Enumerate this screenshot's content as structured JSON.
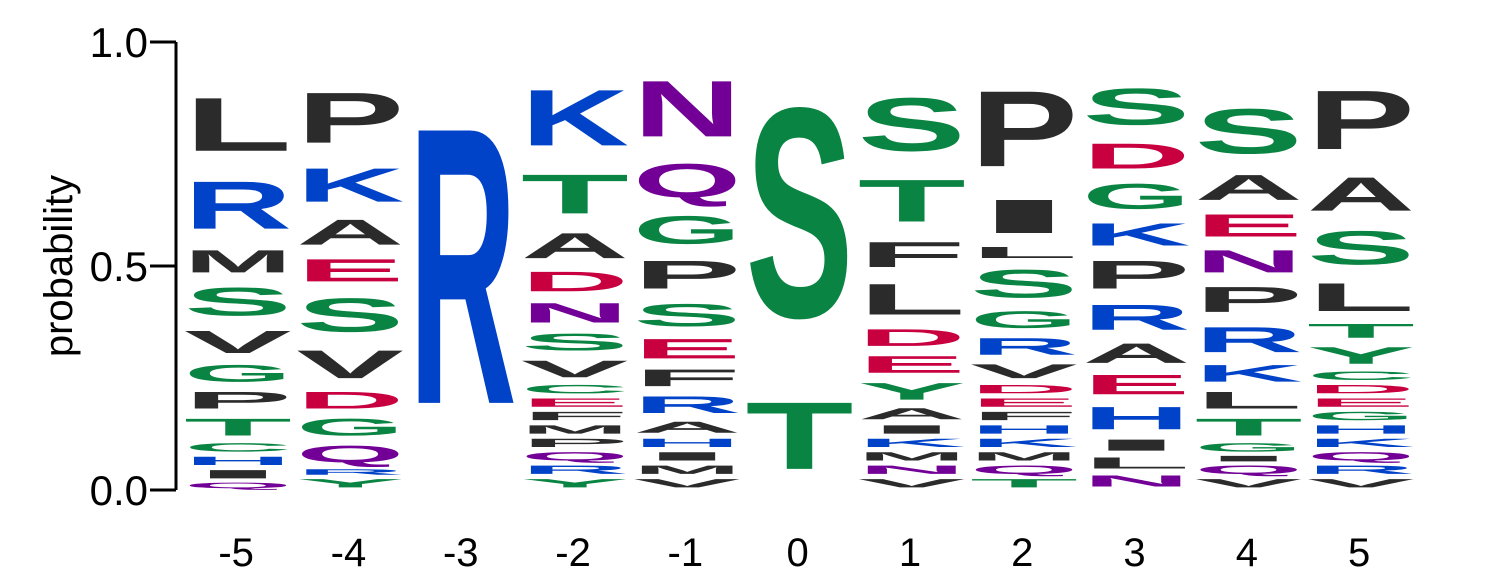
{
  "chart_data": {
    "type": "sequence-logo",
    "ylabel": "probability",
    "ylim": [
      0,
      1
    ],
    "yticks": [
      "0.0",
      "0.5",
      "1.0"
    ],
    "colors": {
      "hydrophobic": "#2b2b2b",
      "polar": "#0a8442",
      "basic": "#0042c8",
      "acidic": "#c80040",
      "amide": "#720096"
    },
    "residue_class": {
      "A": "hydrophobic",
      "V": "hydrophobic",
      "L": "hydrophobic",
      "I": "hydrophobic",
      "P": "hydrophobic",
      "F": "hydrophobic",
      "W": "hydrophobic",
      "M": "hydrophobic",
      "S": "polar",
      "T": "polar",
      "G": "polar",
      "C": "polar",
      "Y": "polar",
      "K": "basic",
      "R": "basic",
      "H": "basic",
      "D": "acidic",
      "E": "acidic",
      "N": "amide",
      "Q": "amide"
    },
    "positions": [
      {
        "label": "-5",
        "stack": [
          [
            "Q",
            0.02
          ],
          [
            "I",
            0.03
          ],
          [
            "H",
            0.03
          ],
          [
            "C",
            0.03
          ],
          [
            "T",
            0.06
          ],
          [
            "P",
            0.06
          ],
          [
            "G",
            0.06
          ],
          [
            "V",
            0.08
          ],
          [
            "S",
            0.1
          ],
          [
            "M",
            0.08
          ],
          [
            "R",
            0.17
          ],
          [
            "L",
            0.19
          ]
        ]
      },
      {
        "label": "-4",
        "stack": [
          [
            "Y",
            0.03
          ],
          [
            "R",
            0.02
          ],
          [
            "Q",
            0.06
          ],
          [
            "G",
            0.06
          ],
          [
            "D",
            0.06
          ],
          [
            "V",
            0.1
          ],
          [
            "S",
            0.12
          ],
          [
            "E",
            0.08
          ],
          [
            "A",
            0.09
          ],
          [
            "K",
            0.12
          ],
          [
            "P",
            0.18
          ]
        ]
      },
      {
        "label": "-3",
        "stack": [
          [
            "R",
            0.99
          ]
        ]
      },
      {
        "label": "-2",
        "stack": [
          [
            "Y",
            0.03
          ],
          [
            "R",
            0.03
          ],
          [
            "Q",
            0.03
          ],
          [
            "P",
            0.03
          ],
          [
            "M",
            0.03
          ],
          [
            "F",
            0.03
          ],
          [
            "E",
            0.03
          ],
          [
            "C",
            0.03
          ],
          [
            "V",
            0.06
          ],
          [
            "S",
            0.06
          ],
          [
            "N",
            0.07
          ],
          [
            "D",
            0.07
          ],
          [
            "A",
            0.09
          ],
          [
            "T",
            0.14
          ],
          [
            "K",
            0.2
          ]
        ]
      },
      {
        "label": "-1",
        "stack": [
          [
            "V",
            0.03
          ],
          [
            "M",
            0.03
          ],
          [
            "I",
            0.03
          ],
          [
            "H",
            0.03
          ],
          [
            "A",
            0.04
          ],
          [
            "R",
            0.06
          ],
          [
            "F",
            0.06
          ],
          [
            "E",
            0.07
          ],
          [
            "S",
            0.08
          ],
          [
            "P",
            0.1
          ],
          [
            "G",
            0.1
          ],
          [
            "Q",
            0.12
          ],
          [
            "N",
            0.2
          ]
        ]
      },
      {
        "label": "0",
        "stack": [
          [
            "T",
            0.24
          ],
          [
            "S",
            0.75
          ]
        ]
      },
      {
        "label": "1",
        "stack": [
          [
            "V",
            0.03
          ],
          [
            "N",
            0.03
          ],
          [
            "M",
            0.03
          ],
          [
            "K",
            0.03
          ],
          [
            "I",
            0.03
          ],
          [
            "A",
            0.04
          ],
          [
            "Y",
            0.06
          ],
          [
            "E",
            0.06
          ],
          [
            "D",
            0.06
          ],
          [
            "L",
            0.11
          ],
          [
            "F",
            0.09
          ],
          [
            "T",
            0.15
          ],
          [
            "S",
            0.19
          ]
        ]
      },
      {
        "label": "2",
        "stack": [
          [
            "T",
            0.03
          ],
          [
            "Q",
            0.03
          ],
          [
            "M",
            0.03
          ],
          [
            "K",
            0.03
          ],
          [
            "H",
            0.03
          ],
          [
            "F",
            0.03
          ],
          [
            "E",
            0.03
          ],
          [
            "D",
            0.03
          ],
          [
            "V",
            0.05
          ],
          [
            "R",
            0.06
          ],
          [
            "G",
            0.06
          ],
          [
            "S",
            0.1
          ],
          [
            "L",
            0.04
          ],
          [
            "I",
            0.12
          ],
          [
            "P",
            0.27
          ]
        ]
      },
      {
        "label": "3",
        "stack": [
          [
            "N",
            0.04
          ],
          [
            "L",
            0.04
          ],
          [
            "I",
            0.04
          ],
          [
            "H",
            0.08
          ],
          [
            "E",
            0.07
          ],
          [
            "A",
            0.07
          ],
          [
            "R",
            0.09
          ],
          [
            "P",
            0.1
          ],
          [
            "K",
            0.08
          ],
          [
            "G",
            0.09
          ],
          [
            "D",
            0.09
          ],
          [
            "S",
            0.13
          ]
        ]
      },
      {
        "label": "4",
        "stack": [
          [
            "V",
            0.03
          ],
          [
            "Q",
            0.03
          ],
          [
            "I",
            0.02
          ],
          [
            "G",
            0.03
          ],
          [
            "T",
            0.06
          ],
          [
            "L",
            0.06
          ],
          [
            "K",
            0.06
          ],
          [
            "R",
            0.09
          ],
          [
            "P",
            0.09
          ],
          [
            "N",
            0.08
          ],
          [
            "E",
            0.08
          ],
          [
            "A",
            0.09
          ],
          [
            "S",
            0.16
          ]
        ]
      },
      {
        "label": "5",
        "stack": [
          [
            "V",
            0.03
          ],
          [
            "R",
            0.03
          ],
          [
            "Q",
            0.03
          ],
          [
            "K",
            0.03
          ],
          [
            "H",
            0.03
          ],
          [
            "G",
            0.03
          ],
          [
            "E",
            0.03
          ],
          [
            "D",
            0.03
          ],
          [
            "C",
            0.03
          ],
          [
            "Y",
            0.06
          ],
          [
            "T",
            0.05
          ],
          [
            "L",
            0.1
          ],
          [
            "S",
            0.12
          ],
          [
            "A",
            0.12
          ],
          [
            "P",
            0.21
          ]
        ]
      }
    ]
  }
}
